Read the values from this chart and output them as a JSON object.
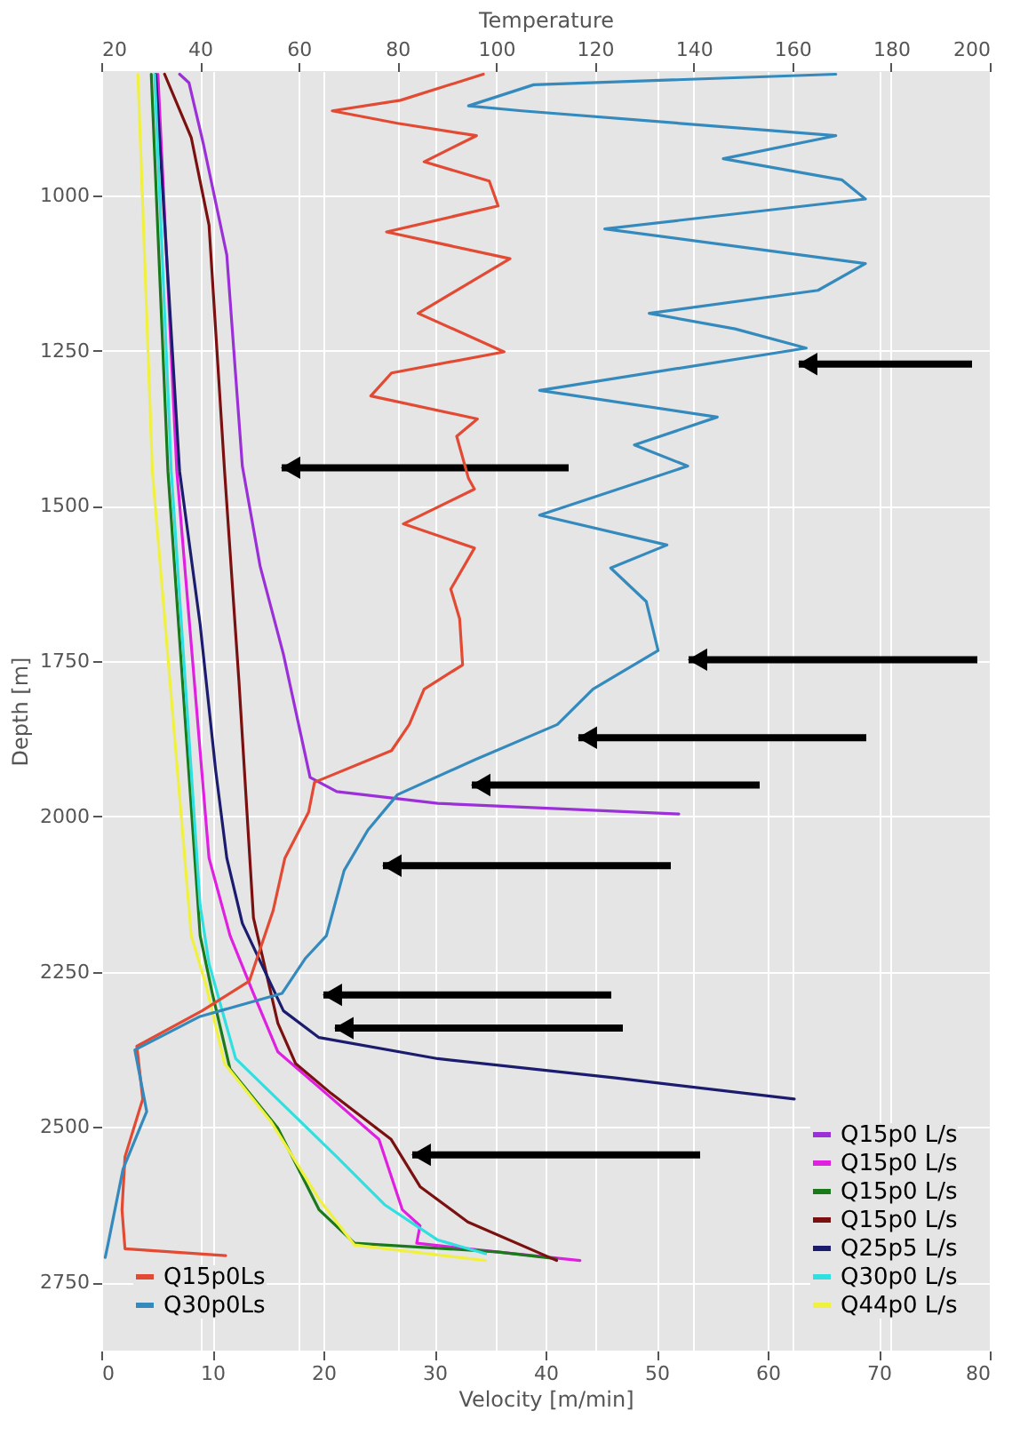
{
  "chart_data": {
    "type": "line",
    "xlabel": "Velocity [m/min]",
    "x2label": "Temperature",
    "ylabel": "Depth [m]",
    "xlim": [
      0,
      80
    ],
    "xticks": [
      0,
      10,
      20,
      30,
      40,
      50,
      60,
      70,
      80
    ],
    "x2lim": [
      20,
      200
    ],
    "x2ticks": [
      20,
      40,
      60,
      80,
      100,
      120,
      140,
      160,
      180,
      200
    ],
    "ylim": [
      2860,
      800
    ],
    "yticks": [
      1000,
      1250,
      1500,
      1750,
      2000,
      2250,
      2500,
      2750
    ],
    "grid": true,
    "legend": "bottom",
    "marker": "none",
    "line_style": "solid",
    "series": [
      {
        "name": "Q15p0Ls",
        "color": "#e24a33",
        "axis": "x2",
        "x": [
          97.4,
          80.6,
          66.8,
          80,
          96,
          85.4,
          98.6,
          100.4,
          77.8,
          102.8,
          84.2,
          101.6,
          78.8,
          74.6,
          96.2,
          92,
          94.4,
          95.6,
          81.2,
          95.6,
          90.8,
          92.6,
          93.2,
          85.4,
          82.4,
          78.8,
          63.2,
          62,
          57.2,
          54.8,
          50,
          40.4,
          27.2,
          28.4,
          24.8,
          24.2,
          24.8,
          45.2
        ],
        "values": [
          805,
          847,
          864,
          884,
          904,
          946,
          977,
          1017,
          1059,
          1102,
          1190,
          1252,
          1286,
          1323,
          1360,
          1388,
          1456,
          1473,
          1529,
          1568,
          1634,
          1682,
          1756,
          1795,
          1852,
          1894,
          1945,
          1993,
          2067,
          2152,
          2265,
          2313,
          2370,
          2455,
          2548,
          2633,
          2696,
          2707
        ]
      },
      {
        "name": "Q30p0Ls",
        "color": "#348abd",
        "axis": "x2",
        "x": [
          168.8,
          107.6,
          94.4,
          105.2,
          168.8,
          146,
          170,
          174.8,
          122,
          174.8,
          165.2,
          131,
          148.4,
          162.8,
          108.8,
          144.8,
          128,
          138.8,
          108.8,
          134.6,
          123.2,
          130.4,
          132.8,
          119.6,
          112.4,
          95.6,
          80,
          74,
          69.2,
          65.6,
          61.4,
          56.6,
          40,
          26.8,
          29.2,
          24.4,
          21.4,
          20.8
        ],
        "values": [
          805,
          822,
          856,
          864,
          904,
          941,
          975,
          1006,
          1054,
          1110,
          1153,
          1190,
          1215,
          1246,
          1314,
          1357,
          1402,
          1436,
          1515,
          1563,
          1600,
          1654,
          1733,
          1795,
          1852,
          1909,
          1965,
          2022,
          2087,
          2192,
          2228,
          2285,
          2322,
          2376,
          2475,
          2568,
          2687,
          2710
        ]
      },
      {
        "name": "Q15p0 L/s",
        "color": "#9b30d8",
        "x": [
          7.05,
          7.9,
          9.2,
          11.3,
          12.7,
          14.3,
          16.4,
          18.8,
          21.2,
          30.3,
          52
        ],
        "values": [
          805,
          819,
          918,
          1096,
          1436,
          1597,
          1739,
          1937,
          1960,
          1979,
          1996
        ]
      },
      {
        "name": "Q15p0 L/s",
        "color": "#e020e0",
        "x": [
          5.1,
          6.8,
          9.7,
          11.6,
          13.7,
          15.9,
          19.6,
          25,
          27.1,
          28.7,
          28.4,
          35.6,
          43.1
        ],
        "values": [
          805,
          1444,
          2067,
          2192,
          2285,
          2379,
          2436,
          2520,
          2633,
          2659,
          2687,
          2701,
          2715
        ]
      },
      {
        "name": "Q15p0 L/s",
        "color": "#1a7a1a",
        "x": [
          4.5,
          6,
          8.9,
          10,
          11.6,
          15.9,
          19.6,
          22.8,
          35.6,
          41
        ],
        "values": [
          805,
          1444,
          2192,
          2285,
          2407,
          2502,
          2633,
          2687,
          2701,
          2712
        ]
      },
      {
        "name": "Q15p0 L/s",
        "color": "#7a1010",
        "x": [
          5.7,
          8.1,
          9.7,
          11.1,
          12.4,
          13.7,
          15.9,
          17.5,
          20.7,
          26.1,
          28.7,
          33,
          41
        ],
        "values": [
          805,
          907,
          1048,
          1444,
          1784,
          2163,
          2333,
          2398,
          2446,
          2520,
          2596,
          2653,
          2715
        ]
      },
      {
        "name": "Q25p5 L/s",
        "color": "#1c1c6e",
        "x": [
          4.9,
          7.05,
          8.9,
          10.3,
          11.3,
          12.7,
          16.4,
          19.6,
          30.3,
          46.3,
          62.4
        ],
        "values": [
          805,
          1444,
          1691,
          1926,
          2067,
          2172,
          2313,
          2356,
          2390,
          2421,
          2455
        ]
      },
      {
        "name": "Q30p0 L/s",
        "color": "#30e0e0",
        "x": [
          4.8,
          6.3,
          8.9,
          9.7,
          12.1,
          17,
          21.2,
          25.5,
          30.3,
          34.6
        ],
        "values": [
          805,
          1444,
          2143,
          2237,
          2390,
          2475,
          2548,
          2625,
          2682,
          2704
        ]
      },
      {
        "name": "Q44p0 L/s",
        "color": "#f0f040",
        "x": [
          3.3,
          4.6,
          8.1,
          9.5,
          11.1,
          15.3,
          19.6,
          22.8,
          34.6
        ],
        "values": [
          805,
          1444,
          2192,
          2276,
          2398,
          2492,
          2616,
          2690,
          2715
        ]
      }
    ]
  }
}
